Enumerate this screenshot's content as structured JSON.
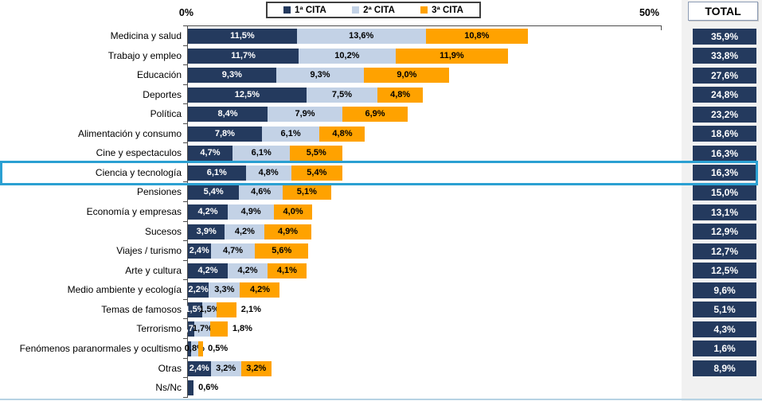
{
  "axis": {
    "min_label": "0%",
    "max_label": "50%",
    "min_value": 0,
    "max_value": 50
  },
  "total_header": "TOTAL",
  "legend": [
    {
      "label": "1ª CITA",
      "color": "#243a5e"
    },
    {
      "label": "2ª CITA",
      "color": "#c3d2e6"
    },
    {
      "label": "3ª CITA",
      "color": "#ffa200"
    }
  ],
  "highlight": {
    "row_index": 7,
    "color": "#2ba0d2"
  },
  "rows": [
    {
      "label": "Medicina y salud",
      "segments": [
        {
          "v": 11.5,
          "text": "11,5%"
        },
        {
          "v": 13.6,
          "text": "13,6%"
        },
        {
          "v": 10.8,
          "text": "10,8%"
        }
      ],
      "total": "35,9%"
    },
    {
      "label": "Trabajo y empleo",
      "segments": [
        {
          "v": 11.7,
          "text": "11,7%"
        },
        {
          "v": 10.2,
          "text": "10,2%"
        },
        {
          "v": 11.9,
          "text": "11,9%"
        }
      ],
      "total": "33,8%"
    },
    {
      "label": "Educación",
      "segments": [
        {
          "v": 9.3,
          "text": "9,3%"
        },
        {
          "v": 9.3,
          "text": "9,3%"
        },
        {
          "v": 9.0,
          "text": "9,0%"
        }
      ],
      "total": "27,6%"
    },
    {
      "label": "Deportes",
      "segments": [
        {
          "v": 12.5,
          "text": "12,5%"
        },
        {
          "v": 7.5,
          "text": "7,5%"
        },
        {
          "v": 4.8,
          "text": "4,8%"
        }
      ],
      "total": "24,8%"
    },
    {
      "label": "Política",
      "segments": [
        {
          "v": 8.4,
          "text": "8,4%"
        },
        {
          "v": 7.9,
          "text": "7,9%"
        },
        {
          "v": 6.9,
          "text": "6,9%"
        }
      ],
      "total": "23,2%"
    },
    {
      "label": "Alimentación y consumo",
      "segments": [
        {
          "v": 7.8,
          "text": "7,8%"
        },
        {
          "v": 6.1,
          "text": "6,1%"
        },
        {
          "v": 4.8,
          "text": "4,8%"
        }
      ],
      "total": "18,6%"
    },
    {
      "label": "Cine y espectaculos",
      "segments": [
        {
          "v": 4.7,
          "text": "4,7%"
        },
        {
          "v": 6.1,
          "text": "6,1%"
        },
        {
          "v": 5.5,
          "text": "5,5%"
        }
      ],
      "total": "16,3%"
    },
    {
      "label": "Ciencia y tecnología",
      "segments": [
        {
          "v": 6.1,
          "text": "6,1%"
        },
        {
          "v": 4.8,
          "text": "4,8%"
        },
        {
          "v": 5.4,
          "text": "5,4%"
        }
      ],
      "total": "16,3%"
    },
    {
      "label": "Pensiones",
      "segments": [
        {
          "v": 5.4,
          "text": "5,4%"
        },
        {
          "v": 4.6,
          "text": "4,6%"
        },
        {
          "v": 5.1,
          "text": "5,1%"
        }
      ],
      "total": "15,0%"
    },
    {
      "label": "Economía y empresas",
      "segments": [
        {
          "v": 4.2,
          "text": "4,2%"
        },
        {
          "v": 4.9,
          "text": "4,9%"
        },
        {
          "v": 4.0,
          "text": "4,0%"
        }
      ],
      "total": "13,1%"
    },
    {
      "label": "Sucesos",
      "segments": [
        {
          "v": 3.9,
          "text": "3,9%"
        },
        {
          "v": 4.2,
          "text": "4,2%"
        },
        {
          "v": 4.9,
          "text": "4,9%"
        }
      ],
      "total": "12,9%"
    },
    {
      "label": "Viajes / turismo",
      "segments": [
        {
          "v": 2.4,
          "text": "2,4%"
        },
        {
          "v": 4.7,
          "text": "4,7%"
        },
        {
          "v": 5.6,
          "text": "5,6%"
        }
      ],
      "total": "12,7%"
    },
    {
      "label": "Arte y cultura",
      "segments": [
        {
          "v": 4.2,
          "text": "4,2%"
        },
        {
          "v": 4.2,
          "text": "4,2%"
        },
        {
          "v": 4.1,
          "text": "4,1%"
        }
      ],
      "total": "12,5%"
    },
    {
      "label": "Medio ambiente y ecología",
      "segments": [
        {
          "v": 2.2,
          "text": "2,2%"
        },
        {
          "v": 3.3,
          "text": "3,3%"
        },
        {
          "v": 4.2,
          "text": "4,2%"
        }
      ],
      "total": "9,6%"
    },
    {
      "label": "Temas de famosos",
      "segments": [
        {
          "v": 1.5,
          "text": "1,5%"
        },
        {
          "v": 1.5,
          "text": "1,5%"
        },
        {
          "v": 2.1,
          "text": "2,1%",
          "out": true
        }
      ],
      "total": "5,1%"
    },
    {
      "label": "Terrorismo",
      "segments": [
        {
          "v": 0.7,
          "text": "0,7%"
        },
        {
          "v": 1.7,
          "text": "1,7%"
        },
        {
          "v": 1.8,
          "text": "1,8%",
          "out": true
        }
      ],
      "total": "4,3%"
    },
    {
      "label": "Fenómenos paranormales y ocultismo",
      "segments": [
        {
          "v": 0.3,
          "text": ""
        },
        {
          "v": 0.8,
          "text": "0,8%"
        },
        {
          "v": 0.5,
          "text": "0,5%",
          "out": true
        }
      ],
      "total": "1,6%"
    },
    {
      "label": "Otras",
      "segments": [
        {
          "v": 2.4,
          "text": "2,4%"
        },
        {
          "v": 3.2,
          "text": "3,2%"
        },
        {
          "v": 3.2,
          "text": "3,2%"
        }
      ],
      "total": "8,9%"
    },
    {
      "label": "Ns/Nc",
      "segments": [
        {
          "v": 0.6,
          "text": "0,6%",
          "out": true
        }
      ],
      "total": null
    }
  ],
  "chart_data": {
    "type": "bar",
    "orientation": "horizontal",
    "stacked": true,
    "title": "",
    "xlabel": "",
    "ylabel": "",
    "xlim": [
      0,
      50
    ],
    "legend_position": "top",
    "grid": false,
    "highlighted_category": "Ciencia y tecnología",
    "categories": [
      "Medicina y salud",
      "Trabajo y empleo",
      "Educación",
      "Deportes",
      "Política",
      "Alimentación y consumo",
      "Cine y espectaculos",
      "Ciencia y tecnología",
      "Pensiones",
      "Economía y empresas",
      "Sucesos",
      "Viajes / turismo",
      "Arte y cultura",
      "Medio ambiente y ecología",
      "Temas de famosos",
      "Terrorismo",
      "Fenómenos paranormales y ocultismo",
      "Otras",
      "Ns/Nc"
    ],
    "series": [
      {
        "name": "1ª CITA",
        "values": [
          11.5,
          11.7,
          9.3,
          12.5,
          8.4,
          7.8,
          4.7,
          6.1,
          5.4,
          4.2,
          3.9,
          2.4,
          4.2,
          2.2,
          1.5,
          0.7,
          0.3,
          2.4,
          0.6
        ]
      },
      {
        "name": "2ª CITA",
        "values": [
          13.6,
          10.2,
          9.3,
          7.5,
          7.9,
          6.1,
          6.1,
          4.8,
          4.6,
          4.9,
          4.2,
          4.7,
          4.2,
          3.3,
          1.5,
          1.7,
          0.8,
          3.2,
          0
        ]
      },
      {
        "name": "3ª CITA",
        "values": [
          10.8,
          11.9,
          9.0,
          4.8,
          6.9,
          4.8,
          5.5,
          5.4,
          5.1,
          4.0,
          4.9,
          5.6,
          4.1,
          4.2,
          2.1,
          1.8,
          0.5,
          3.2,
          0
        ]
      }
    ],
    "totals": [
      35.9,
      33.8,
      27.6,
      24.8,
      23.2,
      18.6,
      16.3,
      16.3,
      15.0,
      13.1,
      12.9,
      12.7,
      12.5,
      9.6,
      5.1,
      4.3,
      1.6,
      8.9,
      null
    ]
  }
}
